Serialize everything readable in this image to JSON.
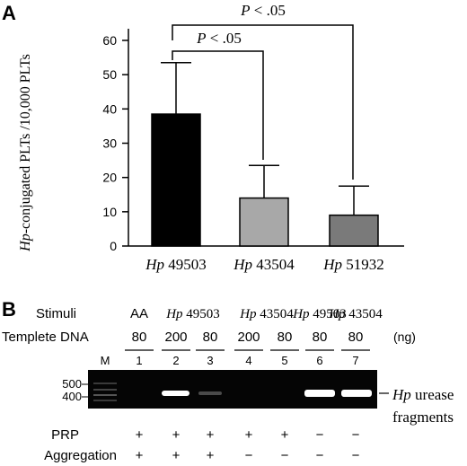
{
  "panel_a": {
    "label": "A",
    "ylabel_italic": "Hp",
    "ylabel_rest": "-conjugated PLTs /10,000 PLTs",
    "sig_top": {
      "italic": "P",
      "text": " < .05"
    },
    "sig_inner": {
      "italic": "P",
      "text": " < .05"
    }
  },
  "chart_data": {
    "type": "bar",
    "categories": [
      "Hp 49503",
      "Hp 43504",
      "Hp 51932"
    ],
    "category_italic": [
      "Hp",
      "Hp",
      "Hp"
    ],
    "category_rest": [
      " 49503",
      " 43504",
      " 51932"
    ],
    "values": [
      38.5,
      14,
      9
    ],
    "errors": [
      15,
      9.5,
      8.5
    ],
    "colors": [
      "#000000",
      "#a8a8a8",
      "#7a7a7a"
    ],
    "ylim": [
      0,
      65
    ],
    "yticks": [
      "0",
      "10",
      "20",
      "30",
      "40",
      "50",
      "60"
    ],
    "grid": false
  },
  "panel_b": {
    "label": "B",
    "stimuli_label": "Stimuli",
    "templete_label": "Templete DNA",
    "unit": "(ng)",
    "stimuli": [
      {
        "italic": "",
        "rest": "AA"
      },
      {
        "italic": "Hp",
        "rest": " 49503"
      },
      {
        "italic": "Hp",
        "rest": " 43504"
      },
      {
        "italic": "Hp",
        "rest": " 49503"
      },
      {
        "italic": "Hp",
        "rest": " 43504"
      }
    ],
    "dna_amounts": [
      "80",
      "200",
      "80",
      "200",
      "80",
      "80",
      "80"
    ],
    "lane_marker": "M",
    "lane_numbers": [
      "1",
      "2",
      "3",
      "4",
      "5",
      "6",
      "7"
    ],
    "size_labels": [
      "500",
      "400"
    ],
    "band_label_italic": "Hp",
    "band_label_rest": " urease",
    "band_label_line2": "fragments",
    "prp_label": "PRP",
    "aggregation_label": "Aggregation",
    "prp_signs": [
      "+",
      "+",
      "+",
      "+",
      "+",
      "−",
      "−"
    ],
    "aggregation_signs": [
      "+",
      "+",
      "+",
      "−",
      "−",
      "−",
      "−"
    ]
  }
}
